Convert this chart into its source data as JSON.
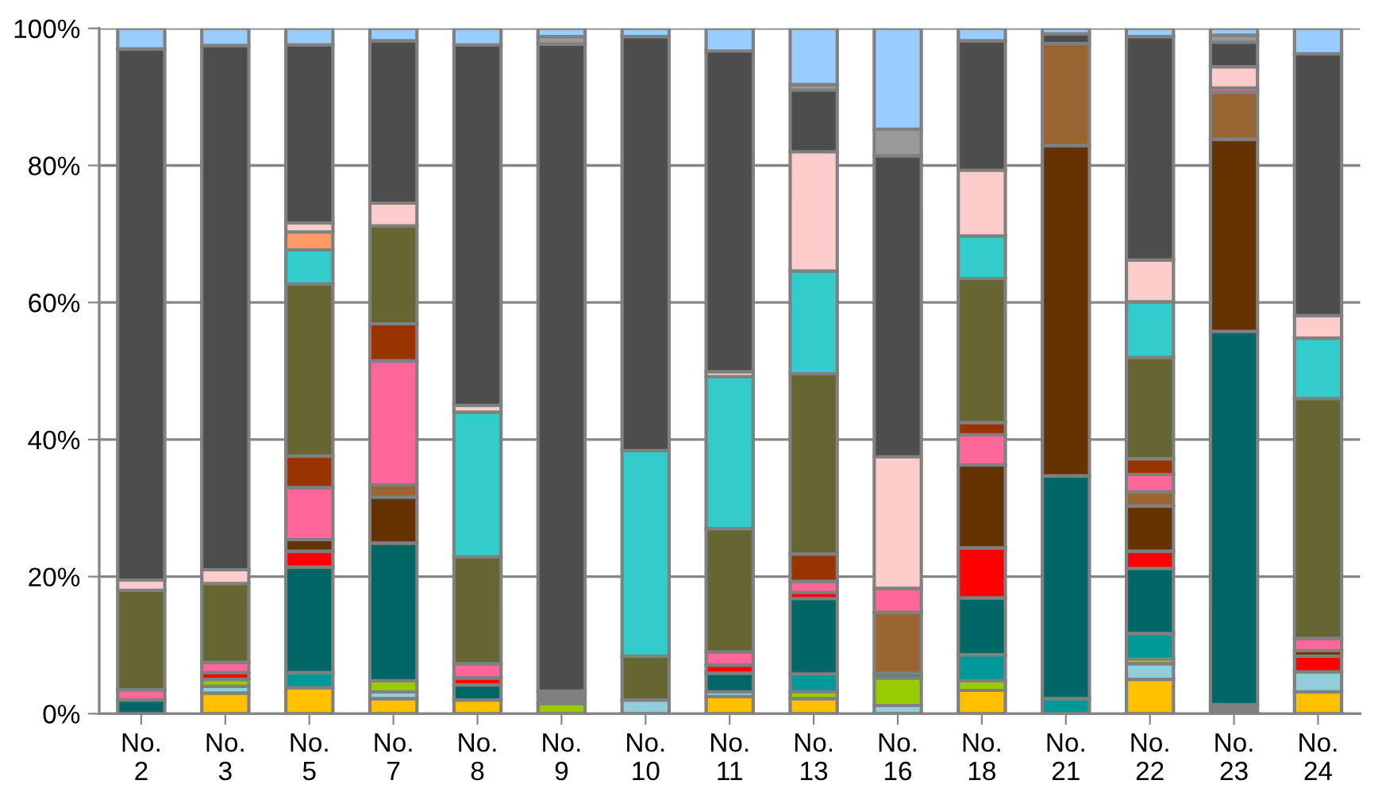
{
  "chart_data": {
    "type": "bar",
    "stacked": true,
    "categories": [
      "No.\n2",
      "No.\n3",
      "No.\n5",
      "No.\n7",
      "No.\n8",
      "No.\n9",
      "No.\n10",
      "No.\n11",
      "No.\n13",
      "No.\n16",
      "No.\n18",
      "No.\n21",
      "No.\n22",
      "No.\n23",
      "No.\n24"
    ],
    "series": [
      {
        "color": "#808080",
        "values": [
          null,
          null,
          null,
          null,
          null,
          null,
          null,
          null,
          null,
          null,
          null,
          null,
          null,
          1.3,
          null
        ]
      },
      {
        "color": "#ffc000",
        "values": [
          null,
          3,
          3.8,
          2.2,
          2,
          null,
          null,
          2.5,
          2.2,
          null,
          3.4,
          null,
          5,
          null,
          3.2
        ]
      },
      {
        "color": "#92cddc",
        "values": [
          null,
          1,
          null,
          1,
          null,
          null,
          2,
          0.7,
          null,
          1.2,
          null,
          null,
          2.3,
          null,
          2.9
        ]
      },
      {
        "color": "#99cc00",
        "values": [
          null,
          1,
          null,
          1.6,
          null,
          1.5,
          null,
          null,
          1,
          4,
          1.4,
          null,
          0.7,
          null,
          null
        ]
      },
      {
        "color": "#009999",
        "values": [
          null,
          null,
          2.2,
          null,
          null,
          null,
          null,
          null,
          2.6,
          0.7,
          3.8,
          2.2,
          3.7,
          null,
          null
        ]
      },
      {
        "color": "#006666",
        "values": [
          2,
          null,
          15.4,
          20.1,
          2.2,
          null,
          null,
          2.7,
          11,
          null,
          8.3,
          32.5,
          9.5,
          54.5,
          null
        ]
      },
      {
        "color": "#ff0000",
        "values": [
          null,
          1,
          2.3,
          null,
          1,
          null,
          null,
          1.2,
          0.9,
          null,
          7.3,
          null,
          2.5,
          null,
          2.3
        ]
      },
      {
        "color": "#663300",
        "values": [
          null,
          null,
          1.7,
          6.7,
          null,
          null,
          null,
          null,
          null,
          null,
          12.1,
          48.2,
          6.6,
          28,
          0.8
        ]
      },
      {
        "color": "#996633",
        "values": [
          null,
          null,
          null,
          1.8,
          null,
          null,
          null,
          null,
          null,
          8.9,
          null,
          14.9,
          2.1,
          6.9,
          null
        ]
      },
      {
        "color": "#ff6699",
        "values": [
          1.5,
          1.5,
          7.6,
          18.1,
          2.1,
          null,
          null,
          1.9,
          1.6,
          3.5,
          4.4,
          null,
          2.5,
          0.6,
          1.8
        ]
      },
      {
        "color": "#993300",
        "values": [
          null,
          null,
          4.6,
          5.4,
          null,
          null,
          null,
          null,
          4,
          null,
          1.8,
          null,
          2.3,
          null,
          null
        ]
      },
      {
        "color": "#666633",
        "values": [
          14.5,
          11.5,
          25.1,
          14.3,
          15.6,
          null,
          6.4,
          18,
          26.3,
          null,
          21,
          null,
          14.8,
          null,
          35
        ]
      },
      {
        "color": "#33cccc",
        "values": [
          null,
          null,
          5,
          null,
          21.1,
          null,
          30,
          22.2,
          15,
          null,
          6.2,
          null,
          8.1,
          null,
          8.8
        ]
      },
      {
        "color": "#ff9966",
        "values": [
          null,
          null,
          2.6,
          null,
          null,
          null,
          null,
          null,
          null,
          null,
          null,
          null,
          null,
          null,
          null
        ]
      },
      {
        "color": "#ffcccc",
        "values": [
          1.5,
          2,
          1.3,
          3.3,
          1,
          null,
          null,
          0.7,
          17.4,
          19.2,
          9.6,
          null,
          6.1,
          3.1,
          3.3
        ]
      },
      {
        "color": "#808080",
        "values": [
          null,
          null,
          null,
          null,
          null,
          1.8,
          null,
          null,
          null,
          null,
          null,
          null,
          null,
          null,
          null
        ]
      },
      {
        "color": "#4d4d4d",
        "values": [
          77.5,
          76.5,
          26,
          23.7,
          52.6,
          94.4,
          60.4,
          46.8,
          9,
          43.9,
          18.9,
          1.4,
          32.6,
          3.6,
          38.2
        ]
      },
      {
        "color": "#999999",
        "values": [
          null,
          null,
          null,
          null,
          null,
          1.1,
          null,
          null,
          0.8,
          3.9,
          null,
          null,
          null,
          1,
          null
        ]
      },
      {
        "color": "#99ccff",
        "values": [
          3,
          2.5,
          2.4,
          1.8,
          2.4,
          1.2,
          1.2,
          3.3,
          8.2,
          14.7,
          1.8,
          0.8,
          1.2,
          1,
          3.7
        ]
      }
    ],
    "ylim": [
      0,
      100
    ],
    "yticks": [
      {
        "value": 0,
        "label": "0%"
      },
      {
        "value": 20,
        "label": "20%"
      },
      {
        "value": 40,
        "label": "40%"
      },
      {
        "value": 60,
        "label": "60%"
      },
      {
        "value": 80,
        "label": "80%"
      },
      {
        "value": 100,
        "label": "100%"
      }
    ],
    "grid": "y"
  }
}
